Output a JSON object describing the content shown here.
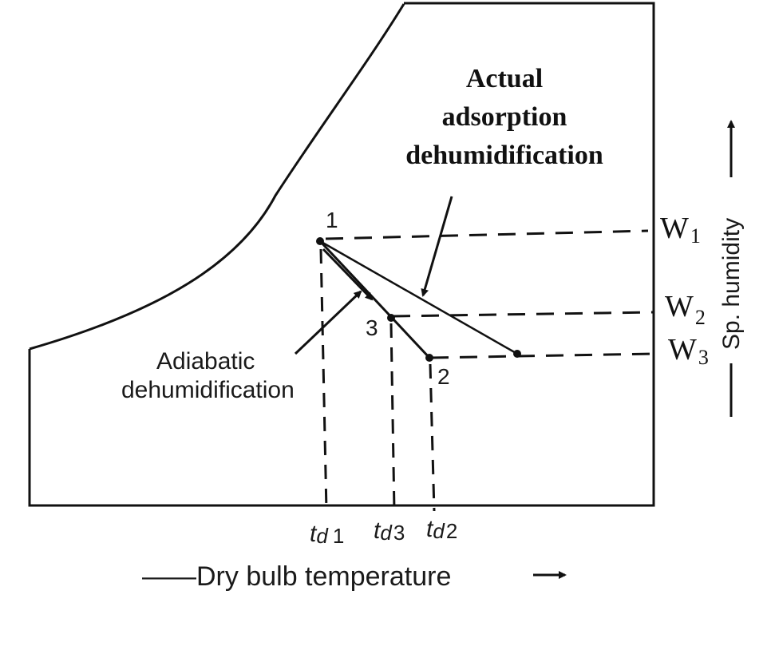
{
  "diagram": {
    "annotations": {
      "actual_line1": "Actual",
      "actual_line2": "adsorption",
      "actual_line3": "dehumidification",
      "adiabatic_line1": "Adiabatic",
      "adiabatic_line2": "dehumidification"
    },
    "points": {
      "p1": "1",
      "p2": "2",
      "p3": "3"
    },
    "humidity_labels": {
      "w1_base": "W",
      "w1_sub": "1",
      "w2_base": "W",
      "w2_sub": "2",
      "w3_base": "W",
      "w3_sub": "3"
    },
    "temp_labels": {
      "td1_base": "t",
      "td1_sub": "d",
      "td1_num": "1",
      "td3_base": "t",
      "td3_sub": "d",
      "td3_num": "3",
      "td2_base": "t",
      "td2_sub": "d",
      "td2_num": "2"
    },
    "axes": {
      "x_label": "——Dry bulb temperature",
      "y_label": "Sp. humidity"
    }
  }
}
